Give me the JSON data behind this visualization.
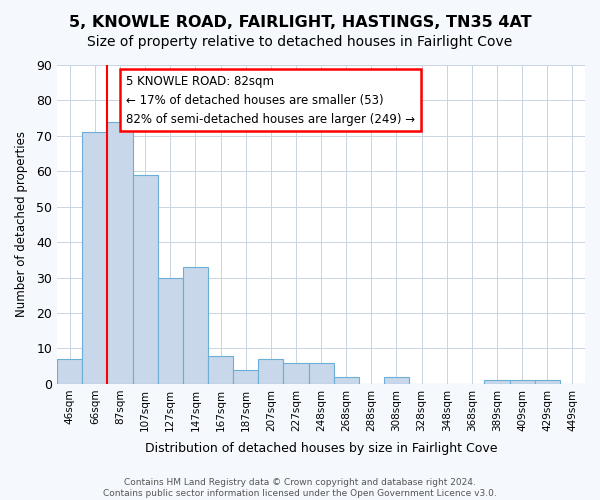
{
  "title": "5, KNOWLE ROAD, FAIRLIGHT, HASTINGS, TN35 4AT",
  "subtitle": "Size of property relative to detached houses in Fairlight Cove",
  "xlabel": "Distribution of detached houses by size in Fairlight Cove",
  "ylabel": "Number of detached properties",
  "categories": [
    "46sqm",
    "66sqm",
    "87sqm",
    "107sqm",
    "127sqm",
    "147sqm",
    "167sqm",
    "187sqm",
    "207sqm",
    "227sqm",
    "248sqm",
    "268sqm",
    "288sqm",
    "308sqm",
    "328sqm",
    "348sqm",
    "368sqm",
    "389sqm",
    "409sqm",
    "429sqm",
    "449sqm"
  ],
  "values": [
    7,
    71,
    74,
    59,
    30,
    33,
    8,
    4,
    7,
    6,
    6,
    2,
    0,
    2,
    0,
    0,
    0,
    1,
    1,
    1,
    0
  ],
  "bar_color": "#c8d8ea",
  "bar_edge_color": "#6baed6",
  "ylim": [
    0,
    90
  ],
  "yticks": [
    0,
    10,
    20,
    30,
    40,
    50,
    60,
    70,
    80,
    90
  ],
  "annotation_text_line1": "5 KNOWLE ROAD: 82sqm",
  "annotation_text_line2": "← 17% of detached houses are smaller (53)",
  "annotation_text_line3": "82% of semi-detached houses are larger (249) →",
  "red_line_x": 2.0,
  "footer1": "Contains HM Land Registry data © Crown copyright and database right 2024.",
  "footer2": "Contains public sector information licensed under the Open Government Licence v3.0.",
  "background_color": "#f5f8fc",
  "plot_background": "#ffffff",
  "title_fontsize": 11.5,
  "subtitle_fontsize": 10,
  "grid_color": "#c8d4e0"
}
